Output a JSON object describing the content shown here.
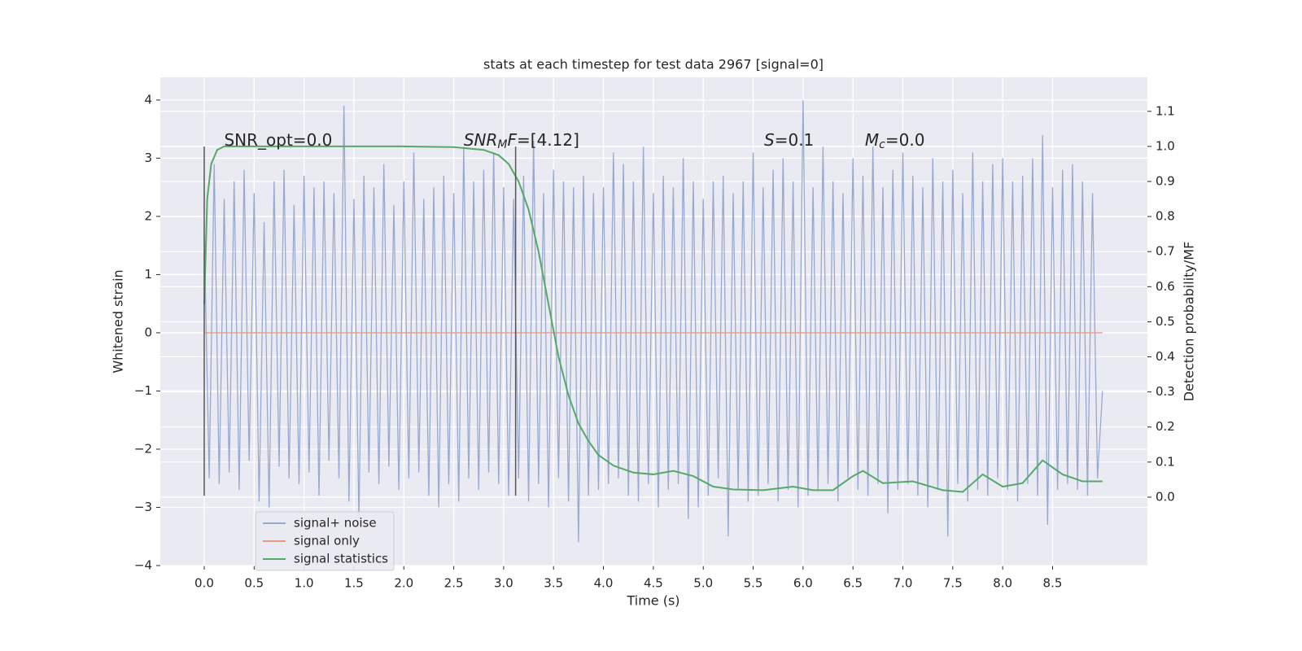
{
  "chart_data": {
    "type": "line",
    "title": "stats at each timestep for test data 2967 [signal=0]",
    "x_label": "Time (s)",
    "y_label": "Whitened strain",
    "y2_label": "Detection probability/MF",
    "xlim": [
      -0.44,
      9.45
    ],
    "ylim": [
      -4.0,
      4.39
    ],
    "y2lim": [
      -0.195,
      1.197
    ],
    "xticks": [
      {
        "value": 0,
        "label": "0.0"
      },
      0.5,
      {
        "value": 1,
        "label": "1.0"
      },
      1.5,
      {
        "value": 2,
        "label": "2.0"
      },
      2.5,
      {
        "value": 3,
        "label": "3.0"
      },
      3.5,
      {
        "value": 4,
        "label": "4.0"
      },
      4.5,
      {
        "value": 5,
        "label": "5.0"
      },
      5.5,
      {
        "value": 6,
        "label": "6.0"
      },
      6.5,
      {
        "value": 7,
        "label": "7.0"
      },
      7.5,
      {
        "value": 8,
        "label": "8.0"
      },
      8.5
    ],
    "yticks": [
      {
        "value": -4,
        "label": "−4"
      },
      {
        "value": -3,
        "label": "−3"
      },
      {
        "value": -2,
        "label": "−2"
      },
      {
        "value": -1,
        "label": "−1"
      },
      0,
      1,
      2,
      3,
      4
    ],
    "y2ticks": [
      {
        "value": 0,
        "label": "0.0"
      },
      0.1,
      0.2,
      0.3,
      0.4,
      0.5,
      0.6,
      0.7,
      0.8,
      0.9,
      {
        "value": 1,
        "label": "1.0"
      },
      1.1
    ],
    "grid": true,
    "legend": "lower left",
    "series": [
      {
        "name": "signal+ noise",
        "color": "#97a9d0",
        "x": [
          0,
          0.05,
          0.1,
          0.15,
          0.2,
          0.25,
          0.3,
          0.35,
          0.4,
          0.45,
          0.5,
          0.55,
          0.6,
          0.65,
          0.7,
          0.75,
          0.8,
          0.85,
          0.9,
          0.95,
          1,
          1.05,
          1.1,
          1.15,
          1.2,
          1.25,
          1.3,
          1.35,
          1.4,
          1.45,
          1.5,
          1.55,
          1.6,
          1.65,
          1.7,
          1.75,
          1.8,
          1.85,
          1.9,
          1.95,
          2,
          2.05,
          2.1,
          2.15,
          2.2,
          2.25,
          2.3,
          2.35,
          2.4,
          2.45,
          2.5,
          2.55,
          2.6,
          2.65,
          2.7,
          2.75,
          2.8,
          2.85,
          2.9,
          2.95,
          3,
          3.05,
          3.1,
          3.15,
          3.2,
          3.25,
          3.3,
          3.35,
          3.4,
          3.45,
          3.5,
          3.55,
          3.6,
          3.65,
          3.7,
          3.75,
          3.8,
          3.85,
          3.9,
          3.95,
          4,
          4.05,
          4.1,
          4.15,
          4.2,
          4.25,
          4.3,
          4.35,
          4.4,
          4.45,
          4.5,
          4.55,
          4.6,
          4.65,
          4.7,
          4.75,
          4.8,
          4.85,
          4.9,
          4.95,
          5,
          5.05,
          5.1,
          5.15,
          5.2,
          5.25,
          5.3,
          5.35,
          5.4,
          5.45,
          5.5,
          5.55,
          5.6,
          5.65,
          5.7,
          5.75,
          5.8,
          5.85,
          5.9,
          5.95,
          6,
          6.05,
          6.1,
          6.15,
          6.2,
          6.25,
          6.3,
          6.35,
          6.4,
          6.45,
          6.5,
          6.55,
          6.6,
          6.65,
          6.7,
          6.75,
          6.8,
          6.85,
          6.9,
          6.95,
          7,
          7.05,
          7.1,
          7.15,
          7.2,
          7.25,
          7.3,
          7.35,
          7.4,
          7.45,
          7.5,
          7.55,
          7.6,
          7.65,
          7.7,
          7.75,
          7.8,
          7.85,
          7.9,
          7.95,
          8,
          8.05,
          8.1,
          8.15,
          8.2,
          8.25,
          8.3,
          8.35,
          8.4,
          8.45,
          8.5,
          8.55,
          8.6,
          8.65,
          8.7,
          8.75,
          8.8,
          8.85,
          8.9,
          8.95,
          9
        ],
        "values": [
          1.7,
          -2.5,
          2.9,
          -2.6,
          2.3,
          -2.4,
          2.6,
          -2.7,
          2.8,
          -2.2,
          2.4,
          -2.9,
          1.9,
          -3.0,
          2.6,
          -2.3,
          2.8,
          -2.5,
          2.2,
          -2.6,
          2.7,
          -2.4,
          2.5,
          -2.8,
          2.6,
          -2.2,
          2.4,
          -2.5,
          3.9,
          -2.9,
          2.3,
          -3.2,
          2.7,
          -2.4,
          2.5,
          -2.6,
          2.9,
          -2.3,
          2.2,
          -2.7,
          2.6,
          -2.5,
          3.1,
          -2.4,
          2.3,
          -2.8,
          2.5,
          -3.0,
          2.7,
          -2.6,
          2.4,
          -2.9,
          3.2,
          -2.5,
          2.6,
          -2.7,
          2.8,
          -2.4,
          3.1,
          -2.6,
          2.5,
          -2.8,
          2.3,
          -2.5,
          2.7,
          -2.9,
          3.3,
          -2.6,
          2.4,
          -3.0,
          2.8,
          -2.5,
          2.6,
          -2.9,
          2.5,
          -3.6,
          2.7,
          -2.8,
          2.4,
          -2.7,
          2.5,
          -2.6,
          3.1,
          -2.5,
          2.9,
          -2.8,
          2.6,
          -2.9,
          3.2,
          -2.6,
          2.4,
          -3.0,
          2.7,
          -2.7,
          2.5,
          -2.6,
          3.0,
          -3.2,
          2.6,
          -3.0,
          2.3,
          -2.8,
          2.6,
          -2.5,
          2.7,
          -3.5,
          2.4,
          -2.7,
          2.6,
          -2.9,
          3.1,
          -2.8,
          2.5,
          -2.6,
          2.8,
          -2.9,
          3.0,
          -2.7,
          2.6,
          -3.0,
          4.0,
          -2.8,
          2.5,
          -2.7,
          3.2,
          -2.6,
          2.6,
          -2.9,
          2.4,
          -2.5,
          3.0,
          -2.7,
          2.7,
          -2.8,
          3.2,
          -2.6,
          2.5,
          -3.1,
          2.8,
          -2.7,
          3.1,
          -2.6,
          2.7,
          -2.8,
          2.5,
          -3.0,
          3.0,
          -2.7,
          2.6,
          -3.5,
          2.8,
          -2.6,
          2.4,
          -2.9,
          3.1,
          -2.7,
          2.6,
          -2.8,
          2.9,
          -2.5,
          3.0,
          -2.7,
          2.6,
          -2.9,
          2.7,
          -2.6,
          3.0,
          -2.8,
          3.4,
          -3.3,
          2.5,
          -2.7,
          2.8,
          -2.6,
          2.9,
          -2.7,
          2.6,
          -2.8,
          2.4,
          -2.5,
          -1.0
        ]
      },
      {
        "name": "signal only",
        "color": "#e39c82",
        "x": [
          0,
          9
        ],
        "values": [
          0,
          0
        ]
      },
      {
        "name": "signal statistics",
        "color": "#55a868",
        "axis": "y2",
        "x": [
          0,
          0.03,
          0.07,
          0.13,
          0.2,
          0.5,
          1,
          1.5,
          2,
          2.5,
          2.8,
          2.95,
          3.05,
          3.15,
          3.25,
          3.35,
          3.45,
          3.55,
          3.65,
          3.75,
          3.85,
          3.95,
          4.1,
          4.3,
          4.5,
          4.7,
          4.9,
          5.1,
          5.3,
          5.6,
          5.9,
          6.1,
          6.3,
          6.5,
          6.6,
          6.8,
          7.1,
          7.4,
          7.6,
          7.8,
          8.0,
          8.2,
          8.4,
          8.6,
          8.8,
          9.0
        ],
        "values": [
          0.55,
          0.85,
          0.95,
          0.99,
          1.0,
          1.0,
          1.0,
          1.0,
          1.0,
          0.998,
          0.99,
          0.975,
          0.95,
          0.9,
          0.82,
          0.7,
          0.55,
          0.4,
          0.29,
          0.21,
          0.16,
          0.12,
          0.09,
          0.07,
          0.065,
          0.075,
          0.06,
          0.03,
          0.022,
          0.02,
          0.03,
          0.02,
          0.02,
          0.06,
          0.075,
          0.04,
          0.045,
          0.02,
          0.015,
          0.065,
          0.03,
          0.04,
          0.105,
          0.065,
          0.045,
          0.045
        ]
      }
    ],
    "vlines": [
      {
        "x": 0,
        "ymin": -2.8,
        "ymax": 3.2,
        "color": "#555555"
      },
      {
        "x": 3.12,
        "ymin": -2.8,
        "ymax": 3.2,
        "color": "#555555"
      }
    ],
    "annotations": [
      {
        "x": 0.2,
        "y": 3.3,
        "parts": [
          {
            "text": "SNR_opt=0.0"
          }
        ]
      },
      {
        "x": 2.6,
        "y": 3.3,
        "parts": [
          {
            "text": "SNR",
            "italic": true
          },
          {
            "text": "M",
            "italic": true,
            "sub": true
          },
          {
            "text": "F",
            "italic": true
          },
          {
            "text": "=[4.12]"
          }
        ]
      },
      {
        "x": 5.61,
        "y": 3.3,
        "parts": [
          {
            "text": "S",
            "italic": true
          },
          {
            "text": "=0.1"
          }
        ]
      },
      {
        "x": 6.62,
        "y": 3.3,
        "parts": [
          {
            "text": "M",
            "italic": true
          },
          {
            "text": "c",
            "italic": true,
            "sub": true
          },
          {
            "text": "=0.0"
          }
        ]
      }
    ]
  }
}
